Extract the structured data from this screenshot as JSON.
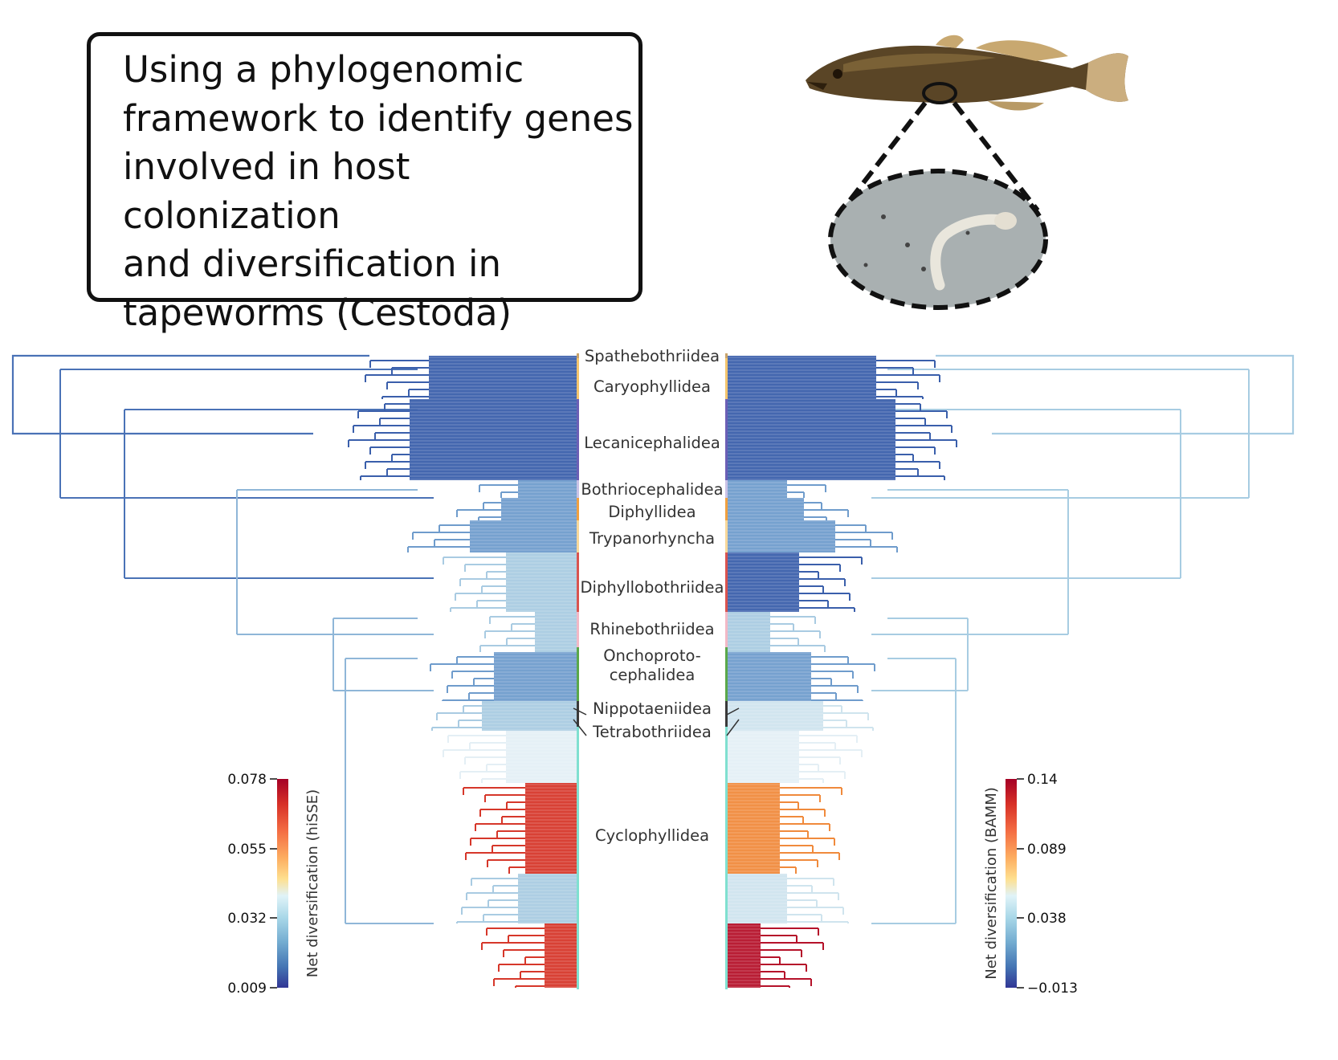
{
  "title": {
    "text": "Using a phylogenomic\nframework to identify genes\ninvolved in host colonization\nand diversification in\ntapeworms (Cestoda)"
  },
  "images": {
    "fish": "fish-host-illustration",
    "inset": "tapeworm-magnified-inset"
  },
  "clades": [
    {
      "name": "Spathebothriidea",
      "color": "#c9a46b"
    },
    {
      "name": "Caryophyllidea",
      "color": "#f3c46d"
    },
    {
      "name": "Lecanicephalidea",
      "color": "#6b5fb5"
    },
    {
      "name": "Bothriocephalidea",
      "color": "#c9c2e6"
    },
    {
      "name": "Diphyllidea",
      "color": "#f0a040"
    },
    {
      "name": "Trypanorhyncha",
      "color": "#f7d79a"
    },
    {
      "name": "Diphyllobothriidea",
      "color": "#d9534f"
    },
    {
      "name": "Rhinebothriidea",
      "color": "#f2b8c6"
    },
    {
      "name": "Onchoproto-\ncephalidea",
      "color": "#5aa84a"
    },
    {
      "name": "Nippotaeniidea",
      "color": "#3a3a3a"
    },
    {
      "name": "Tetrabothriidea",
      "color": "#3a3a3a"
    },
    {
      "name": "Cyclophyllidea",
      "color": "#7fe0d0"
    }
  ],
  "left_legend": {
    "title": "Net diversification (hiSSE)",
    "ticks": [
      "0.078",
      "0.055",
      "0.032",
      "0.009"
    ]
  },
  "right_legend": {
    "title": "Net diversification (BAMM)",
    "ticks": [
      "0.14",
      "0.089",
      "0.038",
      "−0.013"
    ]
  },
  "colors": {
    "dark_blue": "#3a5fab",
    "mid_blue": "#6f9ccc",
    "light_blue": "#a9cbe2",
    "pale": "#e4eff5",
    "orange": "#f08a3c",
    "red": "#d6372a",
    "dark_red": "#b5122a",
    "scale": [
      "#a50026",
      "#d73027",
      "#f46d43",
      "#fdae61",
      "#fee090",
      "#e0f3f8",
      "#abd9e9",
      "#74add1",
      "#4575b4",
      "#313695"
    ]
  }
}
